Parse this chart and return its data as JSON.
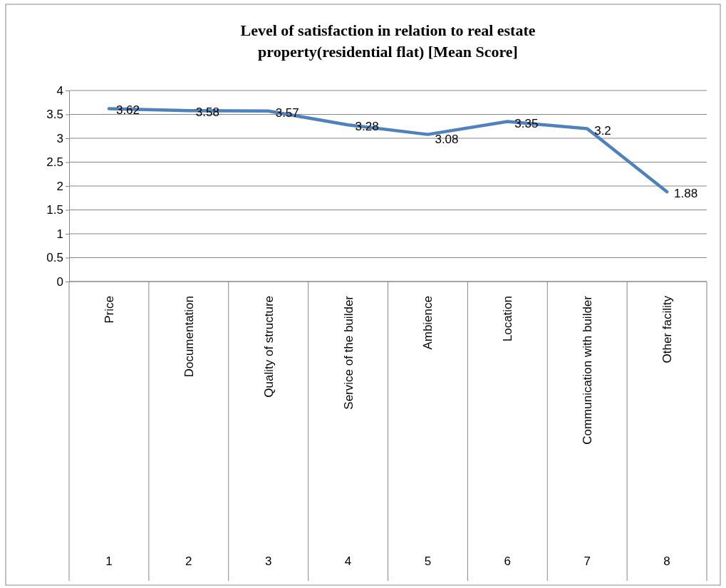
{
  "chart_data": {
    "type": "line",
    "title": "Level of satisfaction in relation to real estate property(residential flat) [Mean Score]",
    "categories": [
      "Price",
      "Documentation",
      "Quality of structure",
      "Service of the builder",
      "Ambience",
      "Location",
      "Communication with builder",
      "Other facility"
    ],
    "series": [
      {
        "color": "#4f81bd",
        "values": [
          3.62,
          3.58,
          3.57,
          3.28,
          3.08,
          3.35,
          3.2,
          1.88
        ]
      }
    ],
    "ylim": [
      0,
      4
    ],
    "yticks": [
      0,
      0.5,
      1,
      1.5,
      2,
      2.5,
      3,
      3.5,
      4
    ],
    "grid": "y",
    "data_labels": true,
    "marker": "none",
    "annotations": [
      "1",
      "2",
      "3",
      "4",
      "5",
      "6",
      "7",
      "8"
    ]
  }
}
